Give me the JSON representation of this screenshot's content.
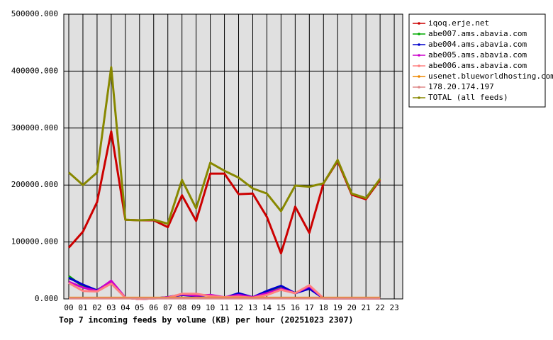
{
  "chart_data": {
    "type": "line",
    "title": "Top 7 incoming feeds by volume (KB) per hour (20251023 2307)",
    "categories": [
      "00",
      "01",
      "02",
      "03",
      "04",
      "05",
      "06",
      "07",
      "08",
      "09",
      "10",
      "11",
      "12",
      "13",
      "14",
      "15",
      "16",
      "17",
      "18",
      "19",
      "20",
      "21",
      "22",
      "23"
    ],
    "ylim": [
      0,
      500000
    ],
    "yticks": [
      {
        "value": 0,
        "label": "0.000"
      },
      {
        "value": 100000,
        "label": "100000.000"
      },
      {
        "value": 200000,
        "label": "200000.000"
      },
      {
        "value": 300000,
        "label": "300000.000"
      },
      {
        "value": 400000,
        "label": "400000.000"
      },
      {
        "value": 500000,
        "label": "500000.000"
      }
    ],
    "grid": true,
    "legend": "outside-right",
    "series": [
      {
        "name": "iqoq.erje.net",
        "color": "#cc0000",
        "values": [
          90000,
          118000,
          170000,
          294000,
          139000,
          138000,
          138000,
          126000,
          182000,
          137000,
          220000,
          220000,
          184000,
          185000,
          144000,
          80000,
          162000,
          116000,
          203000,
          242000,
          183000,
          175000,
          209000,
          null
        ]
      },
      {
        "name": "abe007.ams.abavia.com",
        "color": "#00aa00",
        "values": [
          40000,
          22000,
          15000,
          30000,
          2000,
          0,
          1000,
          3000,
          8000,
          7000,
          6000,
          2000,
          8000,
          3000,
          13000,
          22000,
          10000,
          20000,
          1000,
          1000,
          1000,
          1000,
          1000,
          null
        ]
      },
      {
        "name": "abe004.ams.abavia.com",
        "color": "#0000cc",
        "values": [
          37000,
          25000,
          15000,
          31000,
          2000,
          0,
          1000,
          3000,
          7000,
          5000,
          7000,
          2000,
          10000,
          3000,
          14000,
          23000,
          10000,
          18000,
          1000,
          1000,
          1000,
          1000,
          1000,
          null
        ]
      },
      {
        "name": "abe005.ams.abavia.com",
        "color": "#cc00cc",
        "values": [
          30000,
          20000,
          14000,
          32000,
          2000,
          0,
          1000,
          3000,
          8000,
          6000,
          7000,
          3000,
          7000,
          3000,
          10000,
          18000,
          10000,
          22000,
          1000,
          1000,
          1000,
          1000,
          1000,
          null
        ]
      },
      {
        "name": "abe006.ams.abavia.com",
        "color": "#ff8080",
        "values": [
          28000,
          14000,
          13000,
          27000,
          2000,
          0,
          1000,
          2000,
          9000,
          9000,
          5000,
          3000,
          4000,
          2000,
          7000,
          16000,
          10000,
          24000,
          1000,
          1000,
          1000,
          1000,
          1000,
          null
        ]
      },
      {
        "name": "usenet.blueworldhosting.com",
        "color": "#ee8800",
        "values": [
          2000,
          2000,
          2000,
          2000,
          2000,
          2000,
          2000,
          2000,
          2000,
          2000,
          2000,
          2000,
          2000,
          2000,
          2000,
          2000,
          2000,
          2000,
          2000,
          2000,
          2000,
          2000,
          2000,
          null
        ]
      },
      {
        "name": "178.20.174.197",
        "color": "#dd8888",
        "values": [
          1000,
          1000,
          1000,
          1000,
          1000,
          1000,
          1000,
          1000,
          1000,
          1000,
          1000,
          1000,
          1000,
          1000,
          1000,
          1000,
          1000,
          1000,
          1000,
          1000,
          1000,
          1000,
          1000,
          null
        ]
      },
      {
        "name": "TOTAL (all feeds)",
        "color": "#888800",
        "values": [
          222000,
          200000,
          222000,
          407000,
          139000,
          138000,
          139000,
          132000,
          209000,
          159000,
          239000,
          225000,
          213000,
          194000,
          185000,
          154000,
          199000,
          197000,
          203000,
          244000,
          185000,
          177000,
          211000,
          null
        ]
      }
    ]
  }
}
